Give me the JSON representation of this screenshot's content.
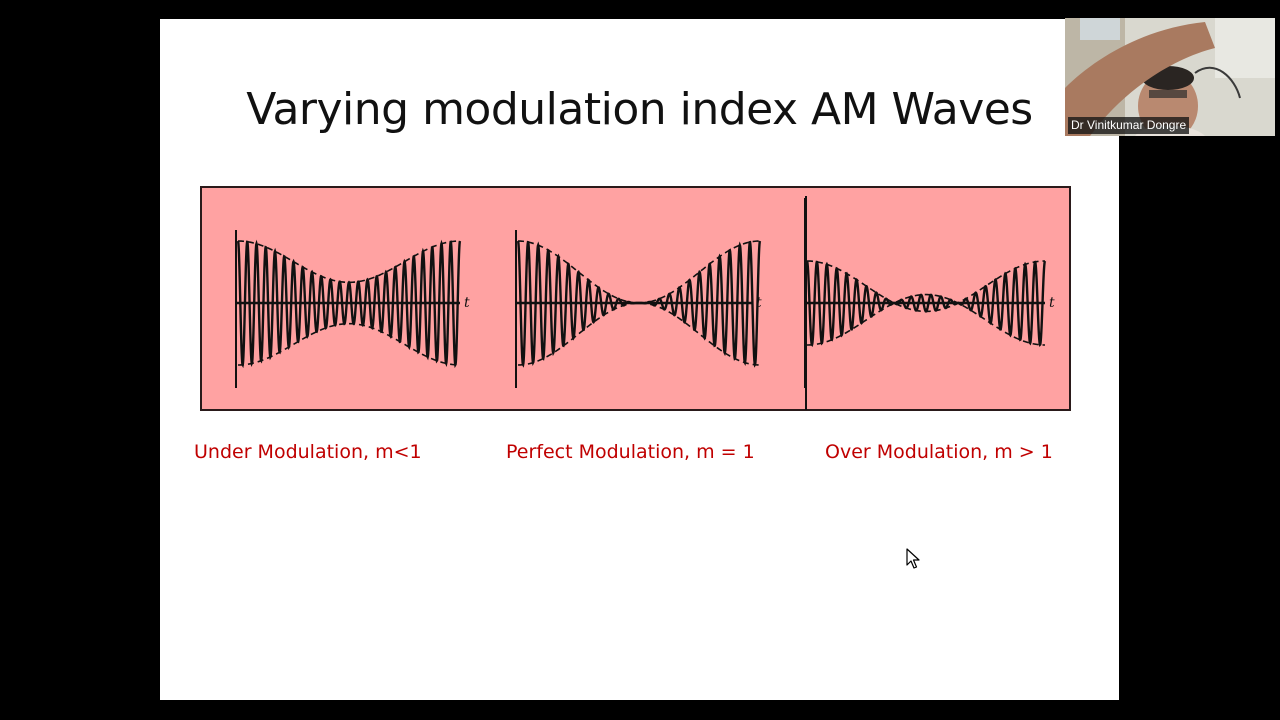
{
  "slide": {
    "title": "Varying modulation index AM Waves",
    "captions": {
      "under": "Under Modulation, m<1",
      "perfect": "Perfect Modulation, m = 1",
      "over": "Over Modulation, m > 1"
    },
    "figure": {
      "background_color": "#FFA2A2",
      "axis_label": "t",
      "panels": [
        {
          "name": "under-modulation",
          "modulation_index": 0.5
        },
        {
          "name": "perfect-modulation",
          "modulation_index": 1.0
        },
        {
          "name": "over-modulation",
          "modulation_index": 1.5
        }
      ]
    }
  },
  "colors": {
    "caption": "#C00000",
    "title": "#111111",
    "slide_background": "#FFFFFF",
    "screen_background": "#000000"
  },
  "webcam": {
    "participant_name": "Dr Vinitkumar Dongre"
  },
  "icons": {
    "cursor": "mouse-pointer-icon"
  }
}
